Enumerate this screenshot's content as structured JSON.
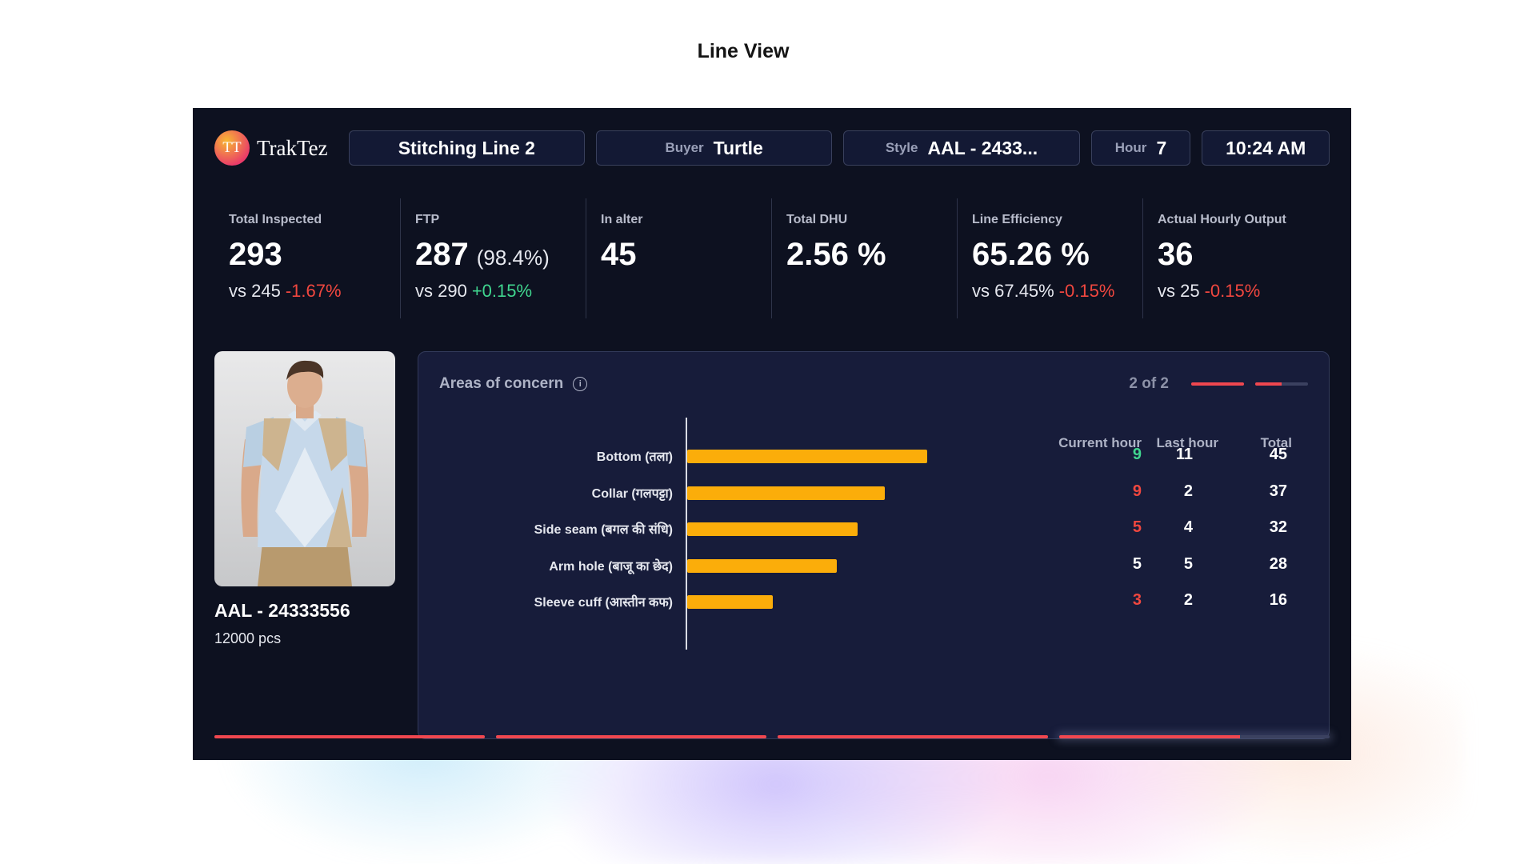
{
  "page": {
    "heading": "Line View"
  },
  "colors": {
    "background": "#0d1120",
    "panel": "#171c3a",
    "accent_bar": "#fbad0a",
    "negative": "#f0473f",
    "positive": "#40d68f"
  },
  "header": {
    "logo_initials": "TT",
    "app_name": "TrakTez",
    "line": "Stitching Line 2",
    "buyer_label": "Buyer",
    "buyer": "Turtle",
    "style_label": "Style",
    "style": "AAL - 2433...",
    "hour_label": "Hour",
    "hour": "7",
    "time": "10:24 AM"
  },
  "stats": [
    {
      "label": "Total Inspected",
      "value": "293",
      "pct": "",
      "compare": "vs 245",
      "delta": "-1.67%",
      "trend": "neg"
    },
    {
      "label": "FTP",
      "value": "287",
      "pct": "(98.4%)",
      "compare": "vs 290",
      "delta": "+0.15%",
      "trend": "pos"
    },
    {
      "label": "In alter",
      "value": "45",
      "pct": "",
      "compare": "",
      "delta": "",
      "trend": ""
    },
    {
      "label": "Total DHU",
      "value": "2.56 %",
      "pct": "",
      "compare": "",
      "delta": "",
      "trend": ""
    },
    {
      "label": "Line Efficiency",
      "value": "65.26 %",
      "pct": "",
      "compare": "vs 67.45%",
      "delta": "-0.15%",
      "trend": "neg"
    },
    {
      "label": "Actual Hourly Output",
      "value": "36",
      "pct": "",
      "compare": "vs 25",
      "delta": "-0.15%",
      "trend": "neg"
    }
  ],
  "product": {
    "code": "AAL - 24333556",
    "quantity": "12000 pcs",
    "image": "man-in-polo-shirt"
  },
  "concerns": {
    "title": "Areas of concern",
    "pager_text": "2 of 2",
    "pager_progress": [
      1.0,
      0.5
    ],
    "columns": [
      "Current hour",
      "Last hour",
      "Total"
    ],
    "rows": [
      {
        "label": "Bottom (तला)",
        "current": "9",
        "current_trend": "pos",
        "last": "11",
        "total": "45"
      },
      {
        "label": "Collar (गलपट्टा)",
        "current": "9",
        "current_trend": "neg",
        "last": "2",
        "total": "37"
      },
      {
        "label": "Side seam (बगल की संधि)",
        "current": "5",
        "current_trend": "neg",
        "last": "4",
        "total": "32"
      },
      {
        "label": "Arm hole (बाजू का छेद)",
        "current": "5",
        "current_trend": "neutral",
        "last": "5",
        "total": "28"
      },
      {
        "label": "Sleeve cuff (आस्तीन कफ)",
        "current": "3",
        "current_trend": "neg",
        "last": "2",
        "total": "16"
      }
    ]
  },
  "slide_progress": [
    1.0,
    1.0,
    1.0,
    0.67
  ]
}
